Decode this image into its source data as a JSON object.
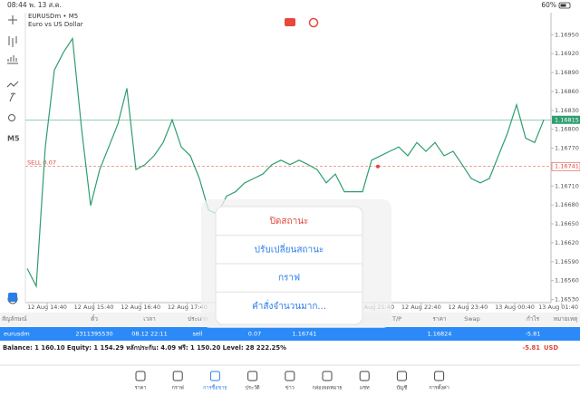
{
  "status_bar": {
    "time": "08:44",
    "date": "พ. 13 ส.ค.",
    "battery": "60%"
  },
  "toolbar": {
    "timeframe": "M5"
  },
  "chart_data": {
    "type": "line",
    "title": "EURUSDm • M5",
    "subtitle": "Euro vs US Dollar",
    "color": "#2e9e6e",
    "values": [
      1.16579,
      1.16551,
      1.16772,
      1.16894,
      1.16922,
      1.16944,
      1.16801,
      1.16679,
      1.16736,
      1.16772,
      1.16808,
      1.16865,
      1.16736,
      1.16744,
      1.16758,
      1.16779,
      1.16815,
      1.16772,
      1.16758,
      1.16722,
      1.16672,
      1.16665,
      1.16694,
      1.16701,
      1.16715,
      1.16722,
      1.16729,
      1.16744,
      1.16751,
      1.16744,
      1.16751,
      1.16744,
      1.16736,
      1.16715,
      1.16729,
      1.16701,
      1.16701,
      1.16701,
      1.16751,
      1.16758,
      1.16765,
      1.16772,
      1.16758,
      1.16779,
      1.16765,
      1.16779,
      1.16758,
      1.16765,
      1.16744,
      1.16722,
      1.16715,
      1.16722,
      1.16758,
      1.16794,
      1.16839,
      1.16786,
      1.16779,
      1.16815
    ],
    "x_labels": [
      "12 Aug 14:40",
      "12 Aug 15:40",
      "12 Aug 16:40",
      "12 Aug 17:40",
      null,
      null,
      null,
      "12 Aug 21:40",
      "12 Aug 22:40",
      "12 Aug 23:40",
      "13 Aug 00:40",
      "13 Aug 01:40"
    ],
    "ylim": [
      1.16525,
      1.16985
    ],
    "yticks": [
      {
        "value": 1.1653,
        "label": "1.16530"
      },
      {
        "value": 1.1656,
        "label": "1.16560"
      },
      {
        "value": 1.1659,
        "label": "1.16590"
      },
      {
        "value": 1.1662,
        "label": "1.16620"
      },
      {
        "value": 1.1665,
        "label": "1.16650"
      },
      {
        "value": 1.1668,
        "label": "1.16680"
      },
      {
        "value": 1.1671,
        "label": "1.16710"
      },
      {
        "value": 1.1677,
        "label": "1.16770"
      },
      {
        "value": 1.168,
        "label": "1.16800"
      },
      {
        "value": 1.1683,
        "label": "1.16830"
      },
      {
        "value": 1.1686,
        "label": "1.16860"
      },
      {
        "value": 1.1689,
        "label": "1.16890"
      },
      {
        "value": 1.1692,
        "label": "1.16920"
      },
      {
        "value": 1.1695,
        "label": "1.16950"
      }
    ],
    "current_price": 1.16815,
    "current_color": "#2e9e6e",
    "position_price": 1.16741,
    "position_label": "SELL 0.07",
    "position_color": "#e0463c"
  },
  "context_menu": {
    "items": [
      "ปิดสถานะ",
      "ปรับเปลี่ยนสถานะ",
      "กราฟ",
      "คำสั่งจำนวนมาก..."
    ]
  },
  "table": {
    "headers": [
      "สัญลักษณ์",
      "ตั๋ว",
      "เวลา",
      "ประเภท",
      "Volume",
      "ราคา",
      "S/L",
      "T/P",
      "ราคา",
      "Swap",
      "กำไร",
      "หมายเหตุ"
    ],
    "rows": [
      [
        "eurusdm",
        "2311395530",
        "08.12 22:11",
        "sell",
        "0.07",
        "1.16741",
        null,
        null,
        "1.16824",
        null,
        "-5.81",
        null
      ]
    ]
  },
  "summary": {
    "balance": "Balance: 1 160.10 Equity: 1 154.29 หลักประกัน: 4.09 ฟรี: 1 150.20 Level: 28 222.25%",
    "profit": "-5.81",
    "currency": "USD"
  },
  "tabs": [
    "ราคา",
    "กราฟ",
    "การซื้อขาย",
    "ประวัติ",
    "ข่าว",
    "กล่องจดหมาย",
    "แชท",
    "บัญชี",
    "การตั้งค่า"
  ]
}
